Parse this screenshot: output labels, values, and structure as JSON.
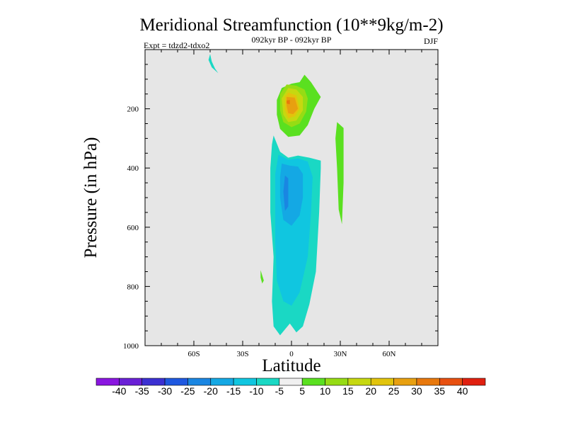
{
  "chart_data": {
    "type": "contour",
    "title": "Meridional Streamfunction (10**9kg/m-2)",
    "period": "092kyr BP - 092kyr BP",
    "experiment": "Expt = tdzd2-tdxo2",
    "season": "DJF",
    "xlabel": "Latitude",
    "ylabel": "Pressure (in hPa)",
    "xlim": [
      -90,
      90
    ],
    "ylim": [
      1000,
      0
    ],
    "xticks": [
      {
        "value": -60,
        "label": "60S"
      },
      {
        "value": -30,
        "label": "30S"
      },
      {
        "value": 0,
        "label": "0"
      },
      {
        "value": 30,
        "label": "30N"
      },
      {
        "value": 60,
        "label": "60N"
      }
    ],
    "yticks": [
      {
        "value": 200,
        "label": "200"
      },
      {
        "value": 400,
        "label": "400"
      },
      {
        "value": 600,
        "label": "600"
      },
      {
        "value": 800,
        "label": "800"
      },
      {
        "value": 1000,
        "label": "1000"
      }
    ],
    "background_color": "#e6e6e6",
    "colorbar": {
      "labels": [
        "-40",
        "-35",
        "-30",
        "-25",
        "-20",
        "-15",
        "-10",
        "-5",
        "5",
        "10",
        "15",
        "20",
        "25",
        "30",
        "35",
        "40"
      ],
      "colors": [
        "#8a16e0",
        "#6a20d6",
        "#3c30d2",
        "#1e58e0",
        "#1a86e2",
        "#14a8e4",
        "#10c6e0",
        "#1ad8c4",
        "#f0f0f0",
        "#5ae020",
        "#96dc14",
        "#c6d810",
        "#e2c40c",
        "#e8a010",
        "#e8780c",
        "#e85010",
        "#e02010"
      ]
    },
    "regions": [
      {
        "level": "-5",
        "color": "#1ad8c4",
        "points": [
          [
            -50,
            15
          ],
          [
            -49,
            40
          ],
          [
            -47,
            64
          ],
          [
            -45,
            80
          ],
          [
            -49,
            60
          ],
          [
            -51,
            35
          ]
        ]
      },
      {
        "level": "-5",
        "color": "#1ad8c4",
        "points": [
          [
            -11,
            290
          ],
          [
            -7,
            345
          ],
          [
            -2,
            365
          ],
          [
            4,
            358
          ],
          [
            11,
            365
          ],
          [
            18,
            375
          ],
          [
            18,
            400
          ],
          [
            17,
            550
          ],
          [
            15,
            750
          ],
          [
            11,
            860
          ],
          [
            7,
            935
          ],
          [
            3,
            955
          ],
          [
            -1,
            925
          ],
          [
            -4,
            945
          ],
          [
            -7,
            965
          ],
          [
            -11,
            935
          ],
          [
            -12,
            850
          ],
          [
            -11,
            700
          ],
          [
            -13,
            550
          ],
          [
            -13,
            400
          ],
          [
            -12,
            320
          ]
        ]
      },
      {
        "level": "-10",
        "color": "#10c6e0",
        "points": [
          [
            -8,
            355
          ],
          [
            -2,
            372
          ],
          [
            4,
            368
          ],
          [
            10,
            378
          ],
          [
            13,
            430
          ],
          [
            12,
            550
          ],
          [
            10,
            700
          ],
          [
            5,
            820
          ],
          [
            0,
            865
          ],
          [
            -5,
            850
          ],
          [
            -9,
            780
          ],
          [
            -10,
            650
          ],
          [
            -10,
            500
          ],
          [
            -10,
            420
          ]
        ]
      },
      {
        "level": "-15",
        "color": "#14a8e4",
        "points": [
          [
            -6,
            385
          ],
          [
            -1,
            392
          ],
          [
            4,
            395
          ],
          [
            7,
            420
          ],
          [
            7,
            500
          ],
          [
            5,
            560
          ],
          [
            0,
            595
          ],
          [
            -5,
            575
          ],
          [
            -7,
            500
          ],
          [
            -7,
            430
          ]
        ]
      },
      {
        "level": "-20",
        "color": "#1a86e2",
        "points": [
          [
            -4,
            425
          ],
          [
            -2,
            435
          ],
          [
            -2,
            530
          ],
          [
            -4,
            545
          ],
          [
            -5,
            480
          ]
        ]
      },
      {
        "level": "5",
        "color": "#5ae020",
        "points": [
          [
            8,
            85
          ],
          [
            12,
            110
          ],
          [
            18,
            160
          ],
          [
            14,
            200
          ],
          [
            10,
            255
          ],
          [
            5,
            290
          ],
          [
            -2,
            295
          ],
          [
            -7,
            268
          ],
          [
            -9,
            220
          ],
          [
            -9,
            170
          ],
          [
            -6,
            130
          ],
          [
            0,
            115
          ],
          [
            5,
            110
          ]
        ]
      },
      {
        "level": "5",
        "color": "#5ae020",
        "points": [
          [
            28,
            245
          ],
          [
            32,
            265
          ],
          [
            32,
            330
          ],
          [
            32,
            450
          ],
          [
            31,
            590
          ],
          [
            29,
            540
          ],
          [
            28,
            400
          ],
          [
            27,
            300
          ]
        ]
      },
      {
        "level": "5",
        "color": "#5ae020",
        "points": [
          [
            -19,
            745
          ],
          [
            -17,
            780
          ],
          [
            -18,
            790
          ],
          [
            -19,
            770
          ]
        ]
      },
      {
        "level": "10",
        "color": "#96dc14",
        "points": [
          [
            -3,
            118
          ],
          [
            3,
            122
          ],
          [
            8,
            135
          ],
          [
            10,
            165
          ],
          [
            9,
            210
          ],
          [
            5,
            250
          ],
          [
            0,
            262
          ],
          [
            -5,
            245
          ],
          [
            -7,
            205
          ],
          [
            -7,
            150
          ]
        ]
      },
      {
        "level": "15",
        "color": "#c6d810",
        "points": [
          [
            -2,
            130
          ],
          [
            3,
            135
          ],
          [
            7,
            160
          ],
          [
            7,
            205
          ],
          [
            3,
            240
          ],
          [
            -2,
            245
          ],
          [
            -5,
            220
          ],
          [
            -6,
            165
          ]
        ]
      },
      {
        "level": "20",
        "color": "#e2c40c",
        "points": [
          [
            -2,
            145
          ],
          [
            3,
            155
          ],
          [
            5,
            200
          ],
          [
            2,
            225
          ],
          [
            -2,
            232
          ],
          [
            -4,
            205
          ],
          [
            -4,
            160
          ]
        ]
      },
      {
        "level": "25",
        "color": "#e8a010",
        "points": [
          [
            -3,
            160
          ],
          [
            2,
            162
          ],
          [
            4,
            200
          ],
          [
            1,
            218
          ],
          [
            -2,
            215
          ],
          [
            -3,
            190
          ]
        ]
      },
      {
        "level": "30",
        "color": "#e8780c",
        "points": [
          [
            -3,
            172
          ],
          [
            -1,
            170
          ],
          [
            -1,
            185
          ],
          [
            -3,
            182
          ]
        ]
      }
    ]
  }
}
